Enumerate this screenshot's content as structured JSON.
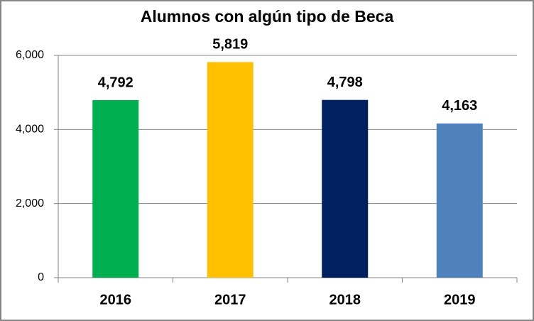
{
  "chart_data": {
    "type": "bar",
    "title": "Alumnos con algún tipo de Beca",
    "categories": [
      "2016",
      "2017",
      "2018",
      "2019"
    ],
    "values": [
      4792,
      5819,
      4798,
      4163
    ],
    "value_labels": [
      "4,792",
      "5,819",
      "4,798",
      "4,163"
    ],
    "colors": [
      "#00b050",
      "#ffc000",
      "#002060",
      "#4f81bd"
    ],
    "ylim": [
      0,
      6000
    ],
    "yticks": [
      0,
      {
        "value": 2000,
        "label": "2,000"
      },
      {
        "value": 4000,
        "label": "4,000"
      },
      {
        "value": 6000,
        "label": "6,000"
      }
    ],
    "grid": true
  }
}
